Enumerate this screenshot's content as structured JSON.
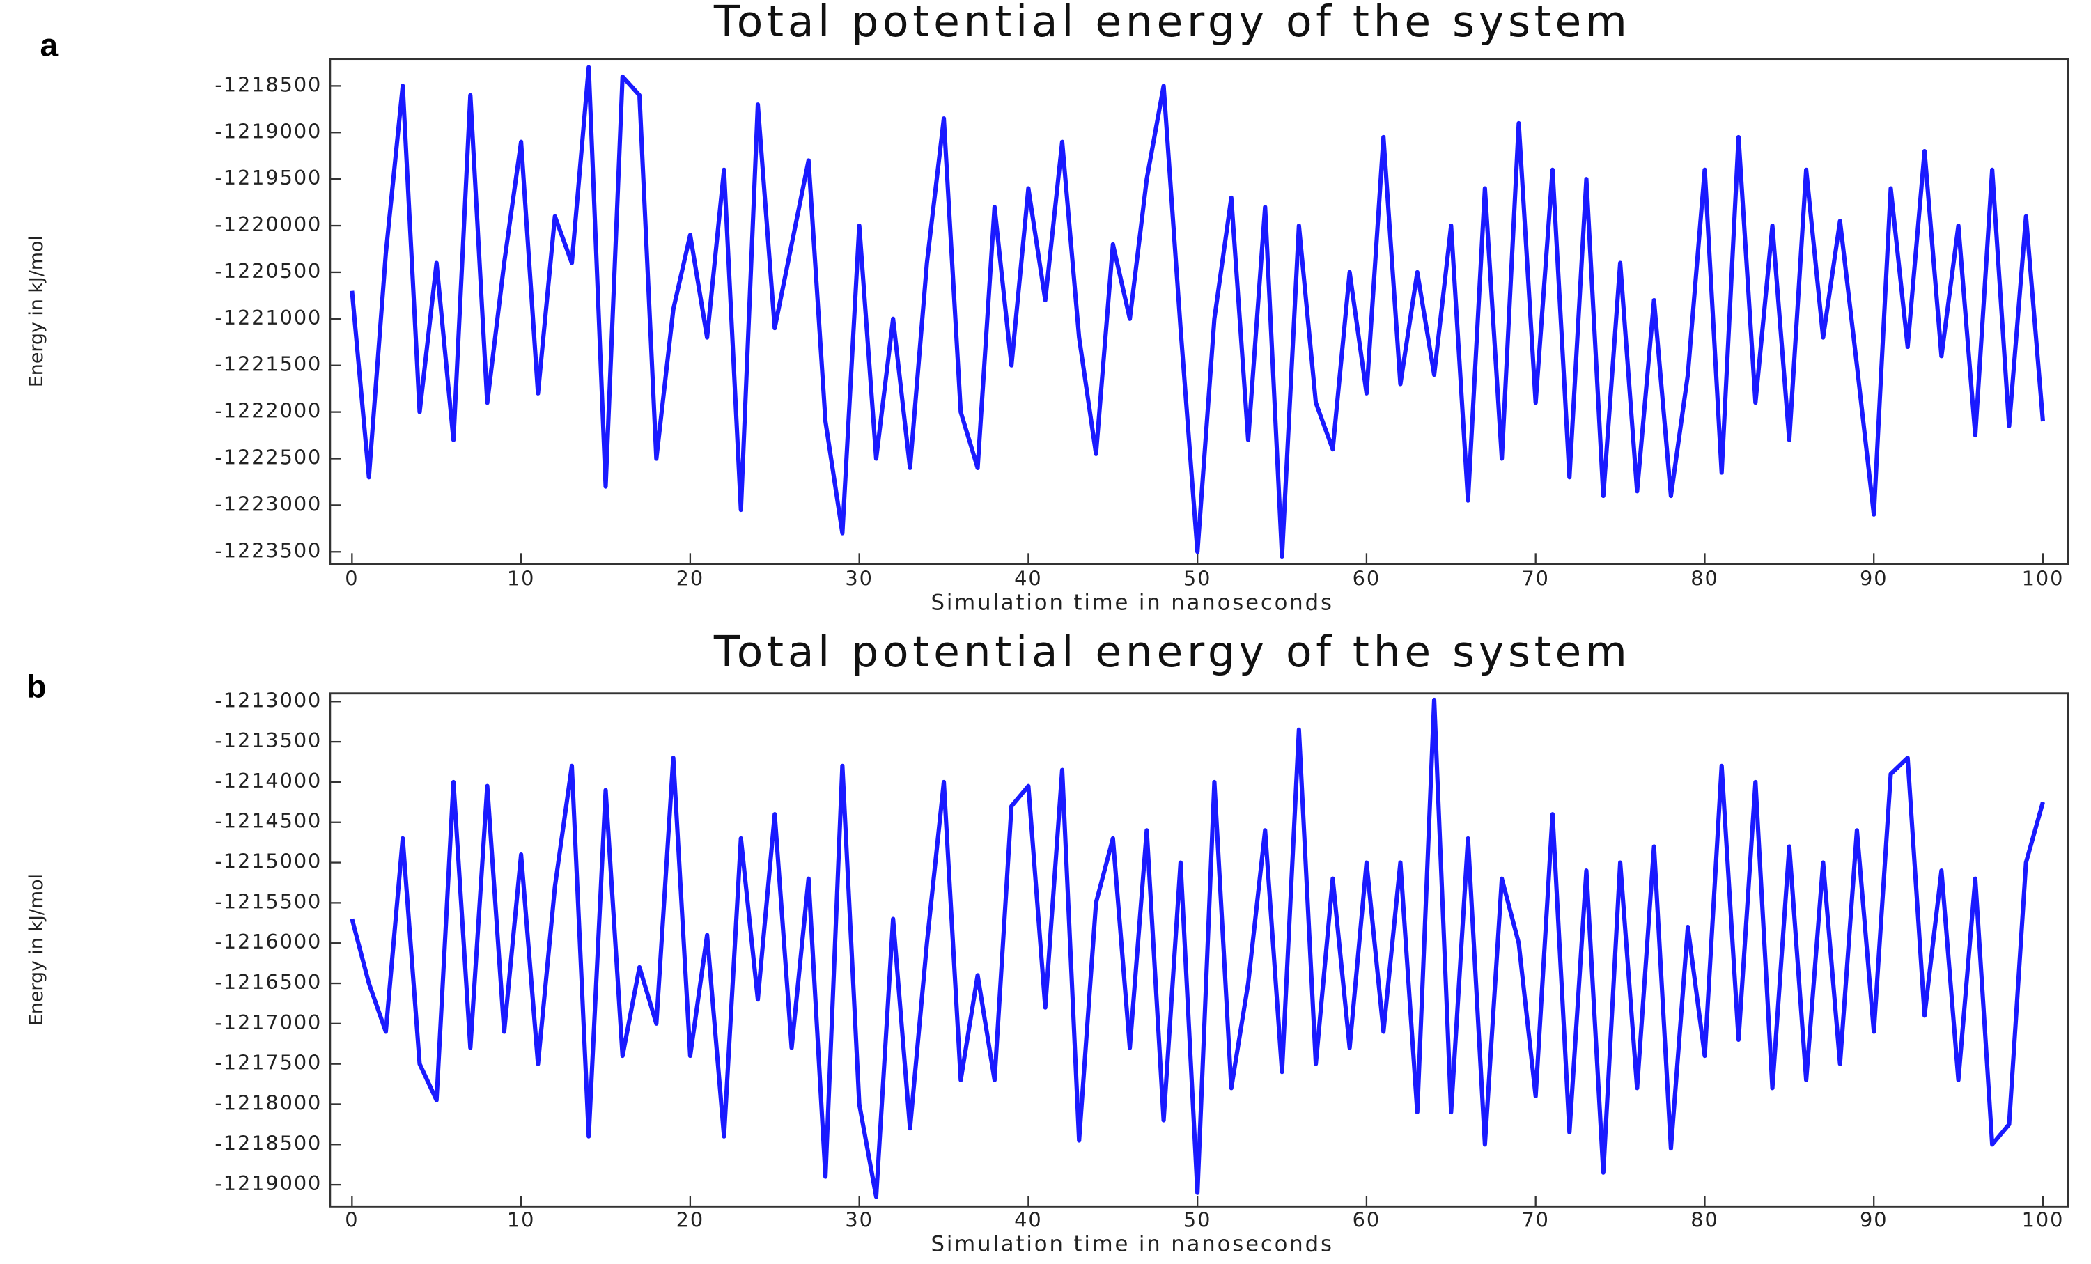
{
  "chart_data": [
    {
      "type": "line",
      "panel_label": "a",
      "title": "Total potential energy of the system",
      "x_label": "Simulation time in nanoseconds",
      "y_label": "Energy in kJ/mol",
      "color": "#1a1aff",
      "x": [
        0,
        1,
        2,
        3,
        4,
        5,
        6,
        7,
        8,
        9,
        10,
        11,
        12,
        13,
        14,
        15,
        16,
        17,
        18,
        19,
        20,
        21,
        22,
        23,
        24,
        25,
        26,
        27,
        28,
        29,
        30,
        31,
        32,
        33,
        34,
        35,
        36,
        37,
        38,
        39,
        40,
        41,
        42,
        43,
        44,
        45,
        46,
        47,
        48,
        49,
        50,
        51,
        52,
        53,
        54,
        55,
        56,
        57,
        58,
        59,
        60,
        61,
        62,
        63,
        64,
        65,
        66,
        67,
        68,
        69,
        70,
        71,
        72,
        73,
        74,
        75,
        76,
        77,
        78,
        79,
        80,
        81,
        82,
        83,
        84,
        85,
        86,
        87,
        88,
        89,
        90,
        91,
        92,
        93,
        94,
        95,
        96,
        97,
        98,
        99,
        100
      ],
      "values": [
        -1220700,
        -1222700,
        -1220300,
        -1218500,
        -1222000,
        -1220400,
        -1222300,
        -1218600,
        -1221900,
        -1220400,
        -1219100,
        -1221800,
        -1219900,
        -1220400,
        -1218300,
        -1222800,
        -1218400,
        -1218600,
        -1222500,
        -1220900,
        -1220100,
        -1221200,
        -1219400,
        -1223050,
        -1218700,
        -1221100,
        -1220200,
        -1219300,
        -1222100,
        -1223300,
        -1220000,
        -1222500,
        -1221000,
        -1222600,
        -1220400,
        -1218850,
        -1222000,
        -1222600,
        -1219800,
        -1221500,
        -1219600,
        -1220800,
        -1219100,
        -1221200,
        -1222450,
        -1220200,
        -1221000,
        -1219500,
        -1218500,
        -1221100,
        -1223500,
        -1221000,
        -1219700,
        -1222300,
        -1219800,
        -1223550,
        -1220000,
        -1221900,
        -1222400,
        -1220500,
        -1221800,
        -1219050,
        -1221700,
        -1220500,
        -1221600,
        -1220000,
        -1222950,
        -1219600,
        -1222500,
        -1218900,
        -1221900,
        -1219400,
        -1222700,
        -1219500,
        -1222900,
        -1220400,
        -1222850,
        -1220800,
        -1222900,
        -1221600,
        -1219400,
        -1222650,
        -1219050,
        -1221900,
        -1220000,
        -1222300,
        -1219400,
        -1221200,
        -1219950,
        -1221500,
        -1223100,
        -1219600,
        -1221300,
        -1219200,
        -1221400,
        -1220000,
        -1222250,
        -1219400,
        -1222150,
        -1219900,
        -1222100
      ],
      "xlim": [
        -1.3,
        101.5
      ],
      "xticks": [
        0,
        10,
        20,
        30,
        40,
        50,
        60,
        70,
        80,
        90,
        100
      ],
      "ylim": [
        -1223630,
        -1218210
      ],
      "yticks": [
        -1218500,
        -1219000,
        -1219500,
        -1220000,
        -1220500,
        -1221000,
        -1221500,
        -1222000,
        -1222500,
        -1223000,
        -1223500
      ]
    },
    {
      "type": "line",
      "panel_label": "b",
      "title": "Total potential energy of the system",
      "x_label": "Simulation time in nanoseconds",
      "y_label": "Energy in kJ/mol",
      "color": "#1a1aff",
      "x": [
        0,
        1,
        2,
        3,
        4,
        5,
        6,
        7,
        8,
        9,
        10,
        11,
        12,
        13,
        14,
        15,
        16,
        17,
        18,
        19,
        20,
        21,
        22,
        23,
        24,
        25,
        26,
        27,
        28,
        29,
        30,
        31,
        32,
        33,
        34,
        35,
        36,
        37,
        38,
        39,
        40,
        41,
        42,
        43,
        44,
        45,
        46,
        47,
        48,
        49,
        50,
        51,
        52,
        53,
        54,
        55,
        56,
        57,
        58,
        59,
        60,
        61,
        62,
        63,
        64,
        65,
        66,
        67,
        68,
        69,
        70,
        71,
        72,
        73,
        74,
        75,
        76,
        77,
        78,
        79,
        80,
        81,
        82,
        83,
        84,
        85,
        86,
        87,
        88,
        89,
        90,
        91,
        92,
        93,
        94,
        95,
        96,
        97,
        98,
        99,
        100
      ],
      "values": [
        -1215700,
        -1216500,
        -1217100,
        -1214700,
        -1217500,
        -1217950,
        -1214000,
        -1217300,
        -1214050,
        -1217100,
        -1214900,
        -1217500,
        -1215300,
        -1213800,
        -1218400,
        -1214100,
        -1217400,
        -1216300,
        -1217000,
        -1213700,
        -1217400,
        -1215900,
        -1218400,
        -1214700,
        -1216700,
        -1214400,
        -1217300,
        -1215200,
        -1218900,
        -1213800,
        -1218000,
        -1219150,
        -1215700,
        -1218300,
        -1216000,
        -1214000,
        -1217700,
        -1216400,
        -1217700,
        -1214300,
        -1214050,
        -1216800,
        -1213850,
        -1218450,
        -1215500,
        -1214700,
        -1217300,
        -1214600,
        -1218200,
        -1215000,
        -1219100,
        -1214000,
        -1217800,
        -1216500,
        -1214600,
        -1217600,
        -1213350,
        -1217500,
        -1215200,
        -1217300,
        -1215000,
        -1217100,
        -1215000,
        -1218100,
        -1212980,
        -1218100,
        -1214700,
        -1218500,
        -1215200,
        -1216000,
        -1217900,
        -1214400,
        -1218350,
        -1215100,
        -1218850,
        -1215000,
        -1217800,
        -1214800,
        -1218550,
        -1215800,
        -1217400,
        -1213800,
        -1217200,
        -1214000,
        -1217800,
        -1214800,
        -1217700,
        -1215000,
        -1217500,
        -1214600,
        -1217100,
        -1213900,
        -1213700,
        -1216900,
        -1215100,
        -1217700,
        -1215200,
        -1218500,
        -1218250,
        -1215000,
        -1214250
      ],
      "xlim": [
        -1.3,
        101.5
      ],
      "xticks": [
        0,
        10,
        20,
        30,
        40,
        50,
        60,
        70,
        80,
        90,
        100
      ],
      "ylim": [
        -1219270,
        -1212900
      ],
      "yticks": [
        -1213000,
        -1213500,
        -1214000,
        -1214500,
        -1215000,
        -1215500,
        -1216000,
        -1216500,
        -1217000,
        -1217500,
        -1218000,
        -1218500,
        -1219000
      ]
    }
  ]
}
